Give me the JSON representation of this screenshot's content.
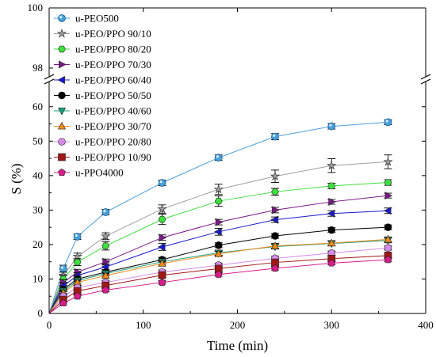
{
  "chart_data": {
    "type": "line",
    "xlabel": "Time (min)",
    "ylabel": "S (%)",
    "xlim": [
      0,
      400
    ],
    "xticks": [
      "0",
      "100",
      "200",
      "300",
      "400"
    ],
    "ylim_lower": [
      0,
      65
    ],
    "yticks_lower": [
      "0",
      "10",
      "20",
      "30",
      "40",
      "50",
      "60"
    ],
    "ylim_upper": [
      98,
      100
    ],
    "yticks_upper": [
      "98",
      "100"
    ],
    "axis_break": true,
    "grid": false,
    "legend_position": "top-left",
    "x": [
      15,
      30,
      60,
      120,
      180,
      240,
      300,
      360
    ],
    "series": [
      {
        "name": "u-PEO500",
        "color": "#4a9fd8",
        "marker": "sphere",
        "values": [
          13,
          22.3,
          29.4,
          37.9,
          45.2,
          51.3,
          54.3,
          55.5
        ],
        "errors": [
          1,
          0.8,
          0.8,
          0.8,
          0.8,
          0.9,
          0.8,
          0.7
        ]
      },
      {
        "name": "u-PEO/PPO 90/10",
        "color": "#a0a0a0",
        "marker": "star",
        "values": [
          11,
          16.5,
          22.4,
          30.3,
          36,
          39.8,
          42.9,
          44
        ],
        "errors": [
          1,
          1,
          1,
          1.2,
          1.5,
          1.8,
          2,
          2
        ]
      },
      {
        "name": "u-PEO/PPO 80/20",
        "color": "#3ee03e",
        "marker": "hexagon",
        "values": [
          10,
          14.9,
          19.6,
          27.3,
          32.6,
          35.3,
          37,
          38
        ],
        "errors": [
          1,
          1,
          1.2,
          1.5,
          1.5,
          1,
          0.8,
          0.8
        ]
      },
      {
        "name": "u-PEO/PPO 70/30",
        "color": "#7a1a86",
        "marker": "triangle-right",
        "values": [
          9,
          12,
          15,
          22,
          26.5,
          30,
          32.4,
          34.2
        ],
        "errors": [
          0.8,
          0.8,
          0.8,
          0.8,
          0.8,
          0.8,
          0.7,
          0.7
        ]
      },
      {
        "name": "u-PEO/PPO 60/40",
        "color": "#1a1acc",
        "marker": "triangle-left",
        "values": [
          8,
          11,
          13.5,
          19.3,
          23.7,
          27.2,
          29,
          29.8
        ],
        "errors": [
          0.8,
          0.8,
          0.8,
          1,
          1,
          0.8,
          0.8,
          0.8
        ]
      },
      {
        "name": "u-PEO/PPO 50/50",
        "color": "#000000",
        "marker": "circle",
        "values": [
          7,
          10,
          12,
          15.6,
          19.8,
          22.5,
          24.2,
          25
        ],
        "errors": [
          0.7,
          0.7,
          0.7,
          0.7,
          0.7,
          0.7,
          0.7,
          0.7
        ]
      },
      {
        "name": "u-PEO/PPO 40/60",
        "color": "#19a07a",
        "marker": "triangle-down",
        "values": [
          6.5,
          9.5,
          11.6,
          15,
          17.6,
          19.4,
          20.3,
          21.2
        ],
        "errors": [
          0.7,
          0.7,
          0.7,
          0.7,
          0.7,
          0.7,
          0.7,
          0.7
        ]
      },
      {
        "name": "u-PEO/PPO 30/70",
        "color": "#f28b1c",
        "marker": "triangle-up",
        "values": [
          6,
          9,
          11,
          14.5,
          17.3,
          19.6,
          20.4,
          21.5
        ],
        "errors": [
          0.7,
          0.7,
          0.7,
          0.7,
          0.7,
          0.7,
          0.7,
          0.7
        ]
      },
      {
        "name": "u-PEO/PPO 20/80",
        "color": "#d38be6",
        "marker": "circle",
        "values": [
          5,
          7.5,
          9,
          12,
          14,
          16,
          17.5,
          19
        ],
        "errors": [
          0.6,
          0.6,
          0.6,
          0.6,
          0.6,
          0.6,
          0.6,
          0.6
        ]
      },
      {
        "name": "u-PEO/PPO 10/90",
        "color": "#a01818",
        "marker": "square",
        "values": [
          4,
          6.5,
          8.1,
          11.1,
          13,
          14.8,
          15.9,
          16.8
        ],
        "errors": [
          0.6,
          0.6,
          0.6,
          0.6,
          0.6,
          0.6,
          0.6,
          0.6
        ]
      },
      {
        "name": "u-PPO4000",
        "color": "#d81c8a",
        "marker": "pentagon",
        "values": [
          3,
          5,
          6.8,
          9,
          11.3,
          13.1,
          14.6,
          15.6
        ],
        "errors": [
          0.5,
          0.5,
          0.5,
          0.5,
          0.5,
          0.5,
          0.5,
          0.5
        ]
      }
    ]
  }
}
